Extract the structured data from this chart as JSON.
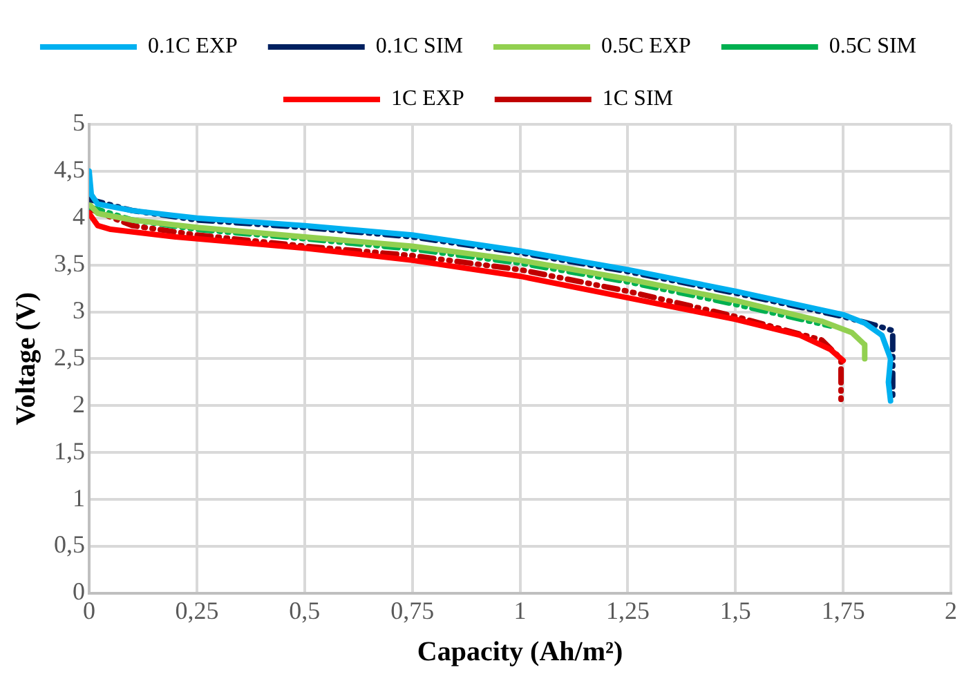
{
  "chart_data": {
    "type": "line",
    "xlabel": "Capacity (Ah/m²)",
    "ylabel": "Voltage (V)",
    "xlim": [
      0,
      2
    ],
    "xticks": [
      0,
      {
        "value": 0.25,
        "label": "0,25"
      },
      {
        "value": 0.5,
        "label": "0,5"
      },
      {
        "value": 0.75,
        "label": "0,75"
      },
      1,
      {
        "value": 1.25,
        "label": "1,25"
      },
      {
        "value": 1.5,
        "label": "1,5"
      },
      {
        "value": 1.75,
        "label": "1,75"
      },
      2
    ],
    "ylim": [
      0,
      5
    ],
    "yticks": [
      0,
      {
        "value": 0.5,
        "label": "0,5"
      },
      1,
      {
        "value": 1.5,
        "label": "1,5"
      },
      2,
      {
        "value": 2.5,
        "label": "2,5"
      },
      3,
      {
        "value": 3.5,
        "label": "3,5"
      },
      4,
      {
        "value": 4.5,
        "label": "4,5"
      },
      5
    ],
    "grid": true,
    "legend": "top",
    "marker": "none",
    "series": [
      {
        "name": "0.1C EXP",
        "color": "#00b0f0",
        "line_style": "solid",
        "x": [
          0,
          0.005,
          0.02,
          0.1,
          0.25,
          0.5,
          0.75,
          1.0,
          1.25,
          1.5,
          1.75,
          1.8,
          1.84,
          1.86,
          1.855,
          1.86
        ],
        "values": [
          4.5,
          4.25,
          4.15,
          4.08,
          4.0,
          3.92,
          3.82,
          3.65,
          3.45,
          3.22,
          2.97,
          2.88,
          2.75,
          2.5,
          2.25,
          2.05
        ]
      },
      {
        "name": "0.1C SIM",
        "color": "#002060",
        "line_style": "dashed",
        "x": [
          0,
          0.1,
          0.25,
          0.5,
          0.75,
          1.0,
          1.25,
          1.5,
          1.75,
          1.83,
          1.865,
          1.865
        ],
        "values": [
          4.2,
          4.08,
          3.98,
          3.9,
          3.8,
          3.63,
          3.43,
          3.2,
          2.95,
          2.85,
          2.8,
          2.05
        ]
      },
      {
        "name": "0.5C EXP",
        "color": "#92d050",
        "line_style": "solid",
        "x": [
          0,
          0.02,
          0.1,
          0.25,
          0.5,
          0.75,
          1.0,
          1.25,
          1.5,
          1.7,
          1.77,
          1.8,
          1.8
        ],
        "values": [
          4.15,
          4.05,
          3.98,
          3.9,
          3.8,
          3.7,
          3.55,
          3.35,
          3.12,
          2.9,
          2.78,
          2.65,
          2.5
        ]
      },
      {
        "name": "0.5C SIM",
        "color": "#00b050",
        "line_style": "dashed",
        "x": [
          0,
          0.1,
          0.25,
          0.5,
          0.75,
          1.0,
          1.25,
          1.5,
          1.72
        ],
        "values": [
          4.12,
          3.98,
          3.88,
          3.78,
          3.67,
          3.52,
          3.32,
          3.08,
          2.85
        ]
      },
      {
        "name": "1C EXP",
        "color": "#ff0000",
        "line_style": "solid",
        "x": [
          0,
          0.02,
          0.05,
          0.2,
          0.5,
          0.75,
          1.0,
          1.25,
          1.5,
          1.65,
          1.72,
          1.75
        ],
        "values": [
          4.05,
          3.92,
          3.88,
          3.8,
          3.68,
          3.55,
          3.38,
          3.15,
          2.92,
          2.75,
          2.6,
          2.48
        ]
      },
      {
        "name": "1C SIM",
        "color": "#c00000",
        "line_style": "dashed",
        "x": [
          0,
          0.1,
          0.25,
          0.5,
          0.75,
          1.0,
          1.25,
          1.5,
          1.7,
          1.745,
          1.745
        ],
        "values": [
          4.1,
          3.92,
          3.82,
          3.7,
          3.6,
          3.45,
          3.22,
          2.95,
          2.7,
          2.5,
          2.05
        ]
      }
    ]
  }
}
